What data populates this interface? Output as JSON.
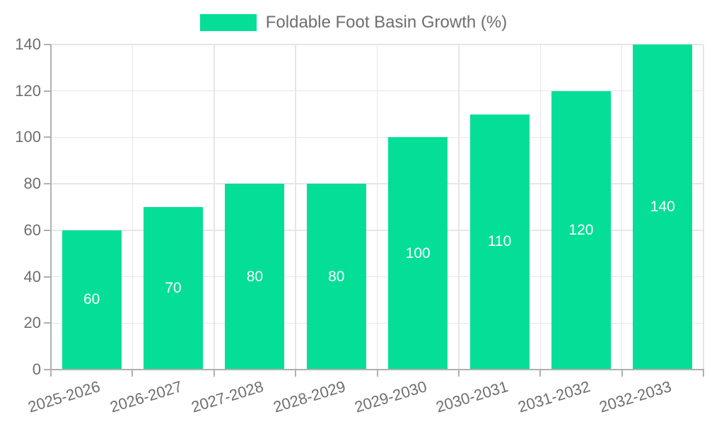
{
  "legend": {
    "label": "Foldable Foot Basin Growth (%)"
  },
  "chart_data": {
    "type": "bar",
    "categories": [
      "2025-2026",
      "2026-2027",
      "2027-2028",
      "2028-2029",
      "2029-2030",
      "2030-2031",
      "2031-2032",
      "2032-2033"
    ],
    "series": [
      {
        "name": "Foldable Foot Basin Growth (%)",
        "values": [
          60,
          70,
          80,
          80,
          100,
          110,
          120,
          140
        ]
      }
    ],
    "value_labels": [
      "60",
      "70",
      "80",
      "80",
      "100",
      "110",
      "120",
      "140"
    ],
    "xlabel": "",
    "ylabel": "",
    "ylim": [
      0,
      140
    ],
    "yticks": [
      0,
      20,
      40,
      60,
      80,
      100,
      120,
      140
    ],
    "grid": true,
    "legend_position": "top",
    "colors": {
      "bar": "#05DE97",
      "value_label": "#FFFFFF",
      "axis_text": "#6E6E6E",
      "legend_text": "#6E6E6E",
      "grid_line": "#E6E6E6",
      "axis_line": "#B0B0B0"
    }
  }
}
